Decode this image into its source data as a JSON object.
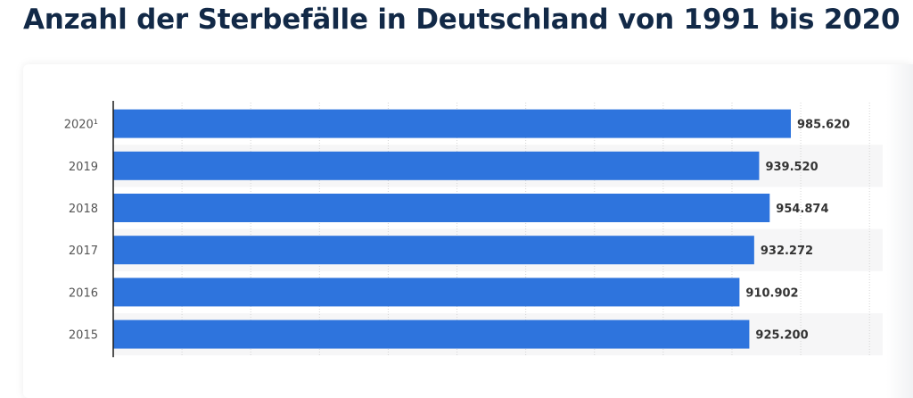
{
  "title": "Anzahl der Sterbefälle in Deutschland von 1991 bis 2020",
  "colors": {
    "bar": "#2e74dd",
    "title": "#122947",
    "stripe": "#f6f6f7",
    "grid": "#d4d4d4",
    "axis": "#1a1a1a"
  },
  "chart_data": {
    "type": "bar",
    "orientation": "horizontal",
    "categories": [
      "2020¹",
      "2019",
      "2018",
      "2017",
      "2016",
      "2015"
    ],
    "values": [
      985620,
      939520,
      954874,
      932272,
      910902,
      925200
    ],
    "value_labels": [
      "985.620",
      "939.520",
      "954.874",
      "932.272",
      "910.902",
      "925.200"
    ],
    "xlim": [
      0,
      1100000
    ],
    "grid": true,
    "legend": "none"
  }
}
